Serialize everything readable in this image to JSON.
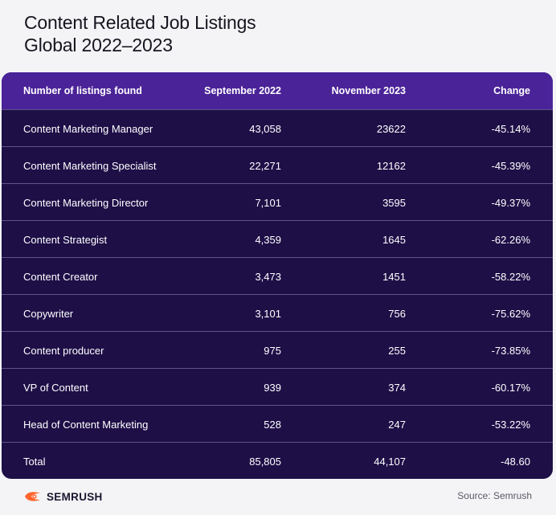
{
  "title": {
    "line1": "Content Related Job Listings",
    "line2": "Global 2022–2023"
  },
  "chart_data": {
    "type": "table",
    "columns": [
      "Number of listings found",
      "September 2022",
      "November 2023",
      "Change"
    ],
    "rows": [
      [
        "Content Marketing Manager",
        "43,058",
        "23622",
        "-45.14%"
      ],
      [
        "Content Marketing Specialist",
        "22,271",
        "12162",
        "-45.39%"
      ],
      [
        "Content Marketing Director",
        "7,101",
        "3595",
        "-49.37%"
      ],
      [
        "Content Strategist",
        "4,359",
        "1645",
        "-62.26%"
      ],
      [
        "Content Creator",
        "3,473",
        "1451",
        "-58.22%"
      ],
      [
        "Copywriter",
        "3,101",
        "756",
        "-75.62%"
      ],
      [
        "Content producer",
        "975",
        "255",
        "-73.85%"
      ],
      [
        "VP of Content",
        "939",
        "374",
        "-60.17%"
      ],
      [
        "Head of Content Marketing",
        "528",
        "247",
        "-53.22%"
      ],
      [
        "Total",
        "85,805",
        "44,107",
        "-48.60"
      ]
    ]
  },
  "footer": {
    "logo": "SEMRUSH",
    "source": "Source: Semrush"
  },
  "colors": {
    "header_bg": "#4a2398",
    "body_bg": "#1e0f47",
    "logo_orange": "#ff642d"
  },
  "icons": {
    "logo": "semrush-flame-icon"
  }
}
